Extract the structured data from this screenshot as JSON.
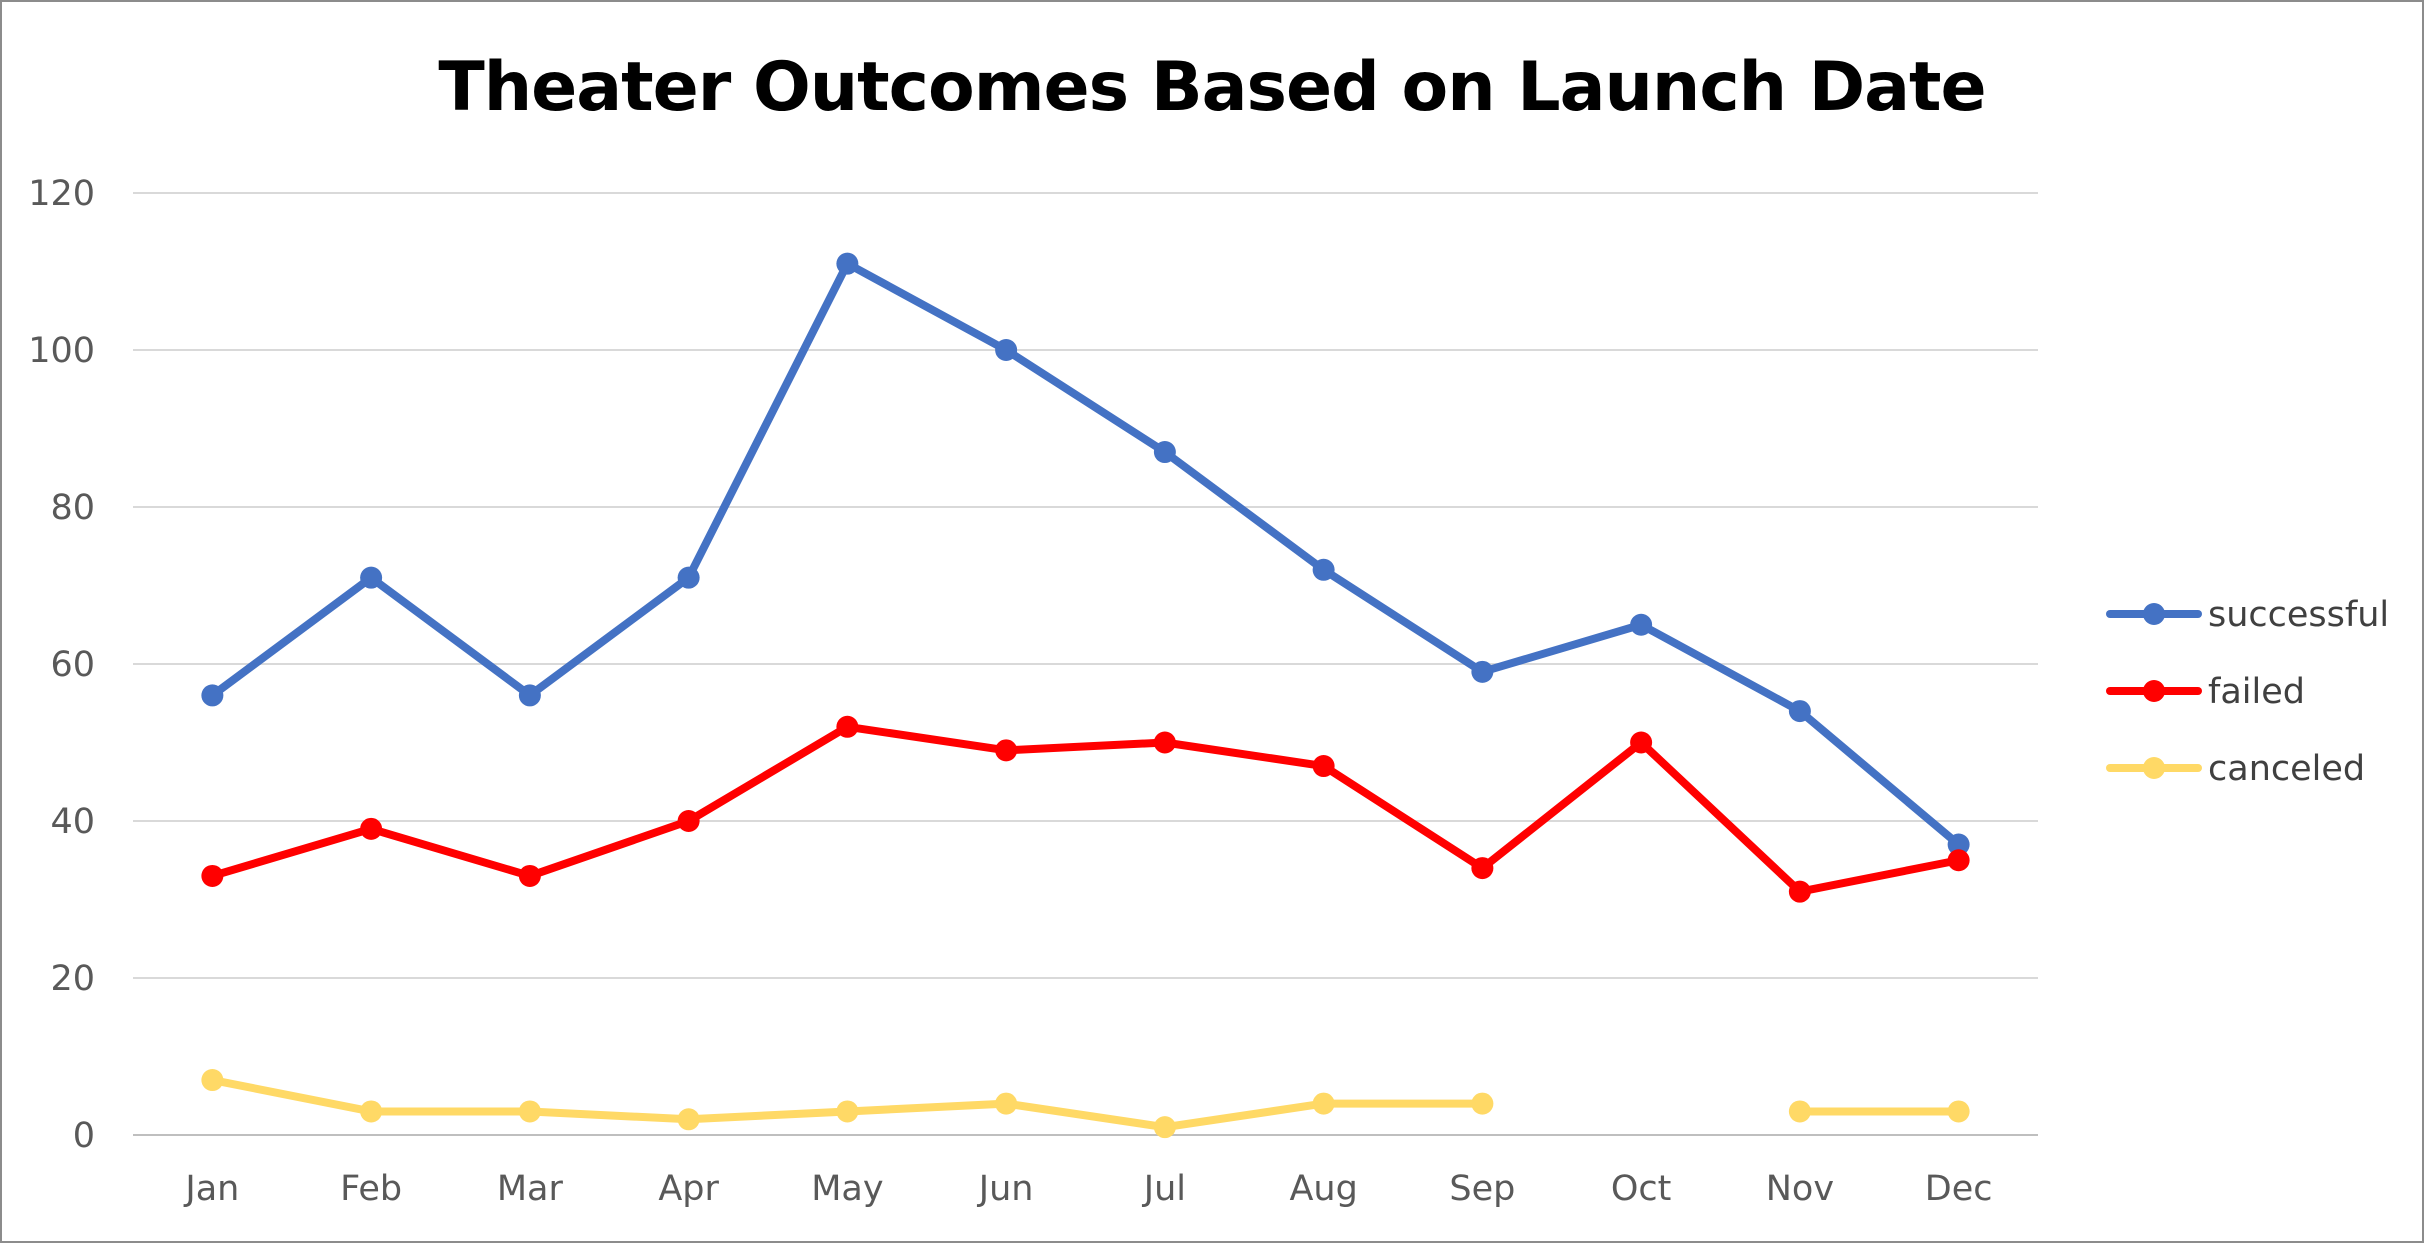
{
  "chart_data": {
    "type": "line",
    "title": "Theater Outcomes Based on Launch Date",
    "xlabel": "",
    "ylabel": "",
    "ylim": [
      0,
      120
    ],
    "y_ticks": [
      0,
      20,
      40,
      60,
      80,
      100,
      120
    ],
    "grid": true,
    "legend_position": "right",
    "categories": [
      "Jan",
      "Feb",
      "Mar",
      "Apr",
      "May",
      "Jun",
      "Jul",
      "Aug",
      "Sep",
      "Oct",
      "Nov",
      "Dec"
    ],
    "series": [
      {
        "name": "successful",
        "color": "#4472C4",
        "values": [
          56,
          71,
          56,
          71,
          111,
          100,
          87,
          72,
          59,
          65,
          54,
          37
        ]
      },
      {
        "name": "failed",
        "color": "#FF0000",
        "values": [
          33,
          39,
          33,
          40,
          52,
          49,
          50,
          47,
          34,
          50,
          31,
          35
        ]
      },
      {
        "name": "canceled",
        "color": "#FFD966",
        "values": [
          7,
          3,
          3,
          2,
          3,
          4,
          1,
          4,
          4,
          null,
          3,
          3
        ]
      }
    ]
  }
}
